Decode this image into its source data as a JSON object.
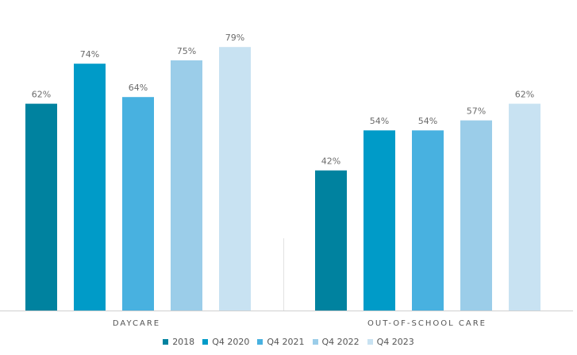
{
  "chart_data": {
    "type": "bar",
    "title": "",
    "xlabel": "",
    "ylabel": "",
    "categories": [
      "DAYCARE",
      "OUT-OF-SCHOOL CARE"
    ],
    "ylim": [
      0,
      100
    ],
    "grid": false,
    "legend_position": "bottom",
    "value_suffix": "%",
    "series": [
      {
        "name": "2018",
        "color": "#00829f",
        "values": [
          62,
          42
        ]
      },
      {
        "name": "Q4 2020",
        "color": "#009bc8",
        "values": [
          74,
          54
        ]
      },
      {
        "name": "Q4 2021",
        "color": "#48b1e0",
        "values": [
          64,
          54
        ]
      },
      {
        "name": "Q4 2022",
        "color": "#9bcde9",
        "values": [
          75,
          57
        ]
      },
      {
        "name": "Q4 2023",
        "color": "#c8e2f2",
        "values": [
          79,
          62
        ]
      }
    ]
  }
}
